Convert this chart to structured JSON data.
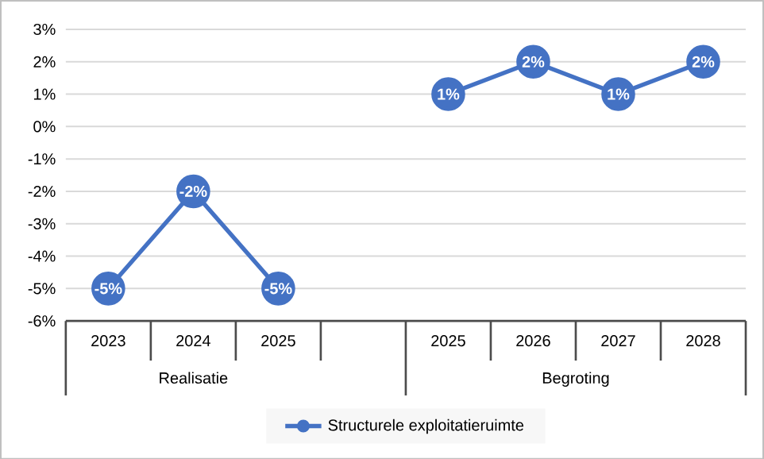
{
  "chart_data": {
    "type": "line",
    "categories": [
      "2023",
      "2024",
      "2025",
      null,
      "2025",
      "2026",
      "2027",
      "2028"
    ],
    "series": [
      {
        "name": "Structurele exploitatieruimte",
        "color": "#4472c4",
        "values": [
          -5,
          -2,
          -5,
          null,
          1,
          2,
          1,
          2
        ],
        "value_labels": [
          "-5%",
          "-2%",
          "-5%",
          null,
          "1%",
          "2%",
          "1%",
          "2%"
        ]
      }
    ],
    "annotations": [
      "Realisatie",
      "Begroting"
    ],
    "ylim": [
      -6,
      3
    ],
    "yticks": [
      {
        "value": -6,
        "label": "-6%"
      },
      {
        "value": -5,
        "label": "-5%"
      },
      {
        "value": -4,
        "label": "-4%"
      },
      {
        "value": -3,
        "label": "-3%"
      },
      {
        "value": -2,
        "label": "-2%"
      },
      {
        "value": -1,
        "label": "-1%"
      },
      {
        "value": 0,
        "label": "0%"
      },
      {
        "value": 1,
        "label": "1%"
      },
      {
        "value": 2,
        "label": "2%"
      },
      {
        "value": 3,
        "label": "3%"
      }
    ],
    "grid": "y",
    "legend": "bottom",
    "marker": "circle",
    "line_style": "solid"
  }
}
